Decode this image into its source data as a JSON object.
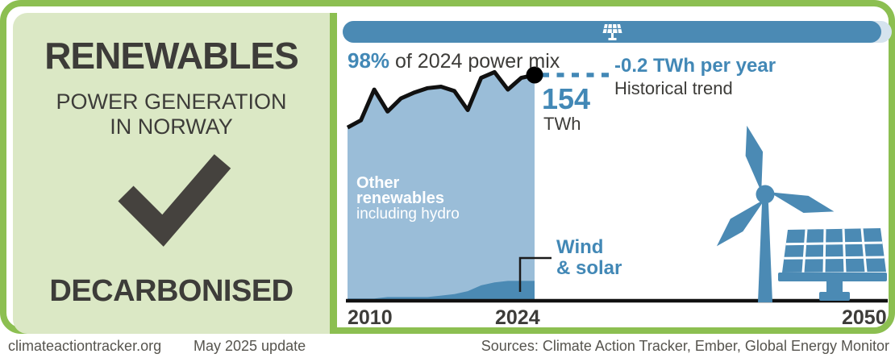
{
  "left_panel": {
    "title": "RENEWABLES",
    "subtitle_line1": "POWER GENERATION",
    "subtitle_line2": "IN NORWAY",
    "status": "DECARBONISED"
  },
  "header": {
    "icon": "solar-panel-icon"
  },
  "chart": {
    "headline_pct": "98%",
    "headline_rest": " of 2024 power mix",
    "value": "154",
    "unit": "TWh",
    "trend_value": "-0.2 TWh per year",
    "trend_label": "Historical trend",
    "area_label_line1": "Other",
    "area_label_line2": "renewables",
    "area_label_line3": "including hydro",
    "wind_label_line1": "Wind",
    "wind_label_line2": "& solar",
    "x_ticks": [
      "2010",
      "2024",
      "2050"
    ]
  },
  "footer": {
    "site": "climateactiontracker.org",
    "update": "May 2025 update",
    "sources": "Sources: Climate Action Tracker, Ember, Global Energy Monitor"
  },
  "colors": {
    "accent": "#4288b6",
    "steel-blue": "#4b8ab4",
    "light-blue": "#9abdd8",
    "pale-blue-cap": "#d5e3ee",
    "green": "#8cbf51",
    "pale-green": "#dbe8c5",
    "ink": "#3d3c39",
    "footer-gray": "#56544e",
    "line-black": "#111111"
  },
  "chart_data": {
    "type": "area",
    "title": "98% of 2024 power mix",
    "unit": "TWh",
    "x": [
      2010,
      2011,
      2012,
      2013,
      2014,
      2015,
      2016,
      2017,
      2018,
      2019,
      2020,
      2021,
      2022,
      2023,
      2024
    ],
    "series": [
      {
        "name": "Total renewables (incl. hydro)",
        "values": [
          118,
          123,
          144,
          129,
          138,
          142,
          145,
          146,
          143,
          130,
          152,
          156,
          144,
          152,
          154
        ]
      },
      {
        "name": "Wind & solar",
        "values": [
          1,
          1,
          1,
          2,
          2,
          2,
          2,
          3,
          4,
          6,
          10,
          12,
          13,
          13,
          13
        ]
      }
    ],
    "annotations": {
      "share_of_2024_power_mix": "98%",
      "final_value_twh": 154,
      "historical_trend": "-0.2 TWh per year"
    },
    "xlim": [
      2010,
      2050
    ],
    "ylim": [
      0,
      170
    ],
    "x_ticks": [
      "2010",
      "2024",
      "2050"
    ],
    "grid": false,
    "legend": "inline-labels"
  }
}
